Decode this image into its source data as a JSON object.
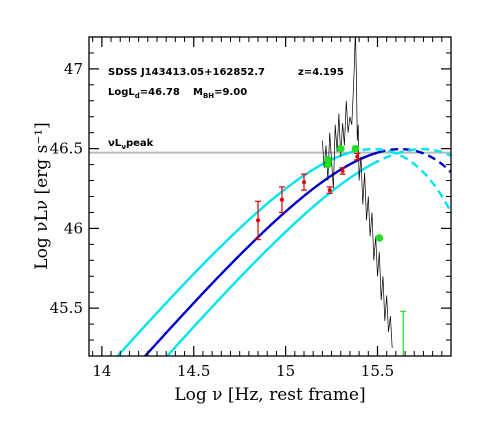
{
  "chart_data": {
    "type": "line",
    "xlabel": "Log ν [Hz, rest frame]",
    "ylabel": "Log νLν [erg s⁻¹]",
    "xlim": [
      13.93,
      15.9
    ],
    "ylim": [
      45.2,
      47.2
    ],
    "x_ticks": [
      14,
      14.5,
      15,
      15.5
    ],
    "x_tick_labels": [
      "14",
      "14.5",
      "15",
      "15.5"
    ],
    "y_ticks": [
      45.5,
      46,
      46.5,
      47
    ],
    "y_tick_labels": [
      "45.5",
      "46",
      "46.5",
      "47"
    ],
    "grid": false,
    "annotations": {
      "object_name": "SDSS J143413.05+162852.7",
      "redshift": "z=4.195",
      "log_ld": "LogL",
      "log_ld_sub": "d",
      "log_ld_value": "=46.78",
      "m_bh": "M",
      "m_bh_sub": "BH",
      "m_bh_value": "=9.00",
      "peak_label": "νL",
      "peak_sub": "ν",
      "peak_suffix": "peak"
    },
    "peak_line": {
      "y": 46.475,
      "color": "#bbbbbb"
    },
    "models": [
      {
        "peak": 46.475,
        "xpeak": 15.5,
        "x_solid_end": 15.5,
        "color": "#0000cc"
      },
      {
        "peak": 46.475,
        "xpeak": 15.35,
        "x_solid_end": 15.35,
        "color": "#00e5ee"
      },
      {
        "peak": 46.475,
        "xpeak": 15.62,
        "x_solid_end": 15.47,
        "color": "#00e5ee"
      }
    ],
    "photometry": {
      "color": "#dd0000",
      "points": [
        {
          "x": 14.85,
          "y": 46.05,
          "err": 0.12
        },
        {
          "x": 14.98,
          "y": 46.18,
          "err": 0.08
        },
        {
          "x": 15.1,
          "y": 46.29,
          "err": 0.05
        },
        {
          "x": 15.24,
          "y": 46.24,
          "err": 0.02
        },
        {
          "x": 15.31,
          "y": 46.36,
          "err": 0.02
        },
        {
          "x": 15.39,
          "y": 46.45,
          "err": 0.02
        }
      ]
    },
    "spectrum_points": {
      "color": "#22dd22",
      "points": [
        {
          "x": 15.23,
          "y": 46.4
        },
        {
          "x": 15.23,
          "y": 46.43
        },
        {
          "x": 15.3,
          "y": 46.5
        },
        {
          "x": 15.38,
          "y": 46.5
        },
        {
          "x": 15.51,
          "y": 45.94
        }
      ]
    },
    "upper_limit": {
      "x": 15.64,
      "y_top": 45.48,
      "y_bottom": 45.2,
      "color": "#22dd22"
    },
    "spectrum": {
      "color": "#000000",
      "x": [
        15.2,
        15.21,
        15.22,
        15.23,
        15.24,
        15.25,
        15.26,
        15.27,
        15.28,
        15.29,
        15.3,
        15.31,
        15.32,
        15.33,
        15.34,
        15.35,
        15.36,
        15.37,
        15.375,
        15.38,
        15.385,
        15.39,
        15.395,
        15.4,
        15.41,
        15.42,
        15.43,
        15.44,
        15.45,
        15.46,
        15.47,
        15.48,
        15.49,
        15.5,
        15.51,
        15.52,
        15.53,
        15.54,
        15.55,
        15.56,
        15.57,
        15.58
      ],
      "y": [
        46.55,
        46.38,
        46.52,
        46.3,
        46.6,
        46.42,
        46.25,
        46.65,
        46.48,
        46.72,
        46.45,
        46.66,
        46.52,
        46.8,
        46.6,
        46.7,
        46.65,
        46.9,
        47.05,
        47.25,
        46.95,
        46.55,
        46.65,
        46.3,
        46.45,
        46.15,
        46.35,
        46.05,
        46.2,
        45.95,
        46.1,
        45.8,
        45.95,
        45.7,
        45.85,
        45.55,
        45.7,
        45.42,
        45.58,
        45.35,
        45.45,
        45.25
      ]
    }
  }
}
